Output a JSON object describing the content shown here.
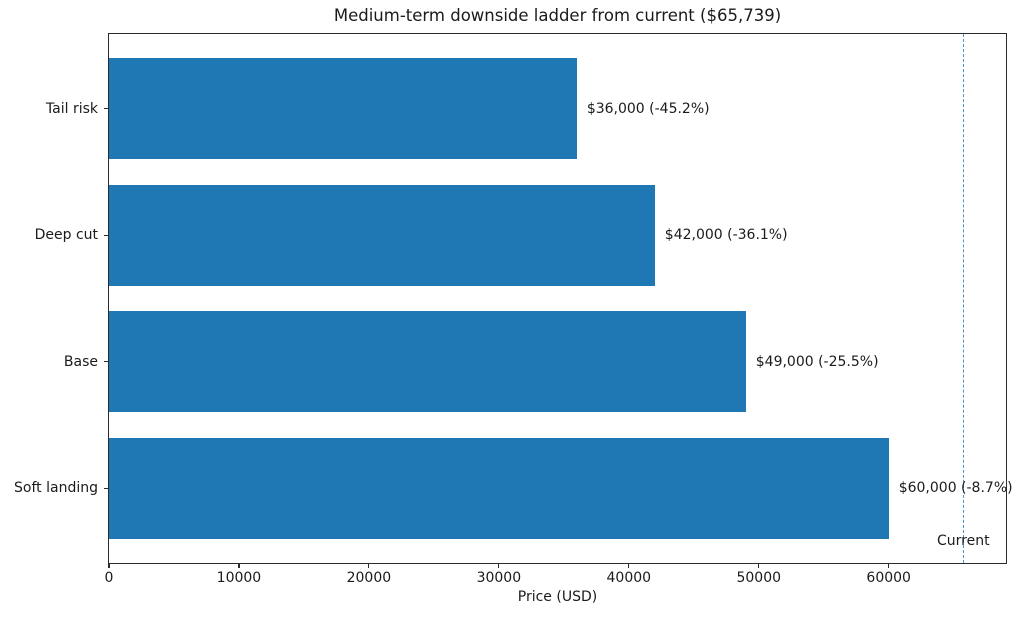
{
  "chart_data": {
    "type": "bar",
    "orientation": "horizontal",
    "title": "Medium-term downside ladder from current ($65,739)",
    "xlabel": "Price (USD)",
    "categories": [
      "Tail risk",
      "Deep cut",
      "Base",
      "Soft landing"
    ],
    "values": [
      36000,
      42000,
      49000,
      60000
    ],
    "bar_labels": [
      "$36,000 (-45.2%)",
      "$42,000 (-36.1%)",
      "$49,000 (-25.5%)",
      "$60,000 (-8.7%)"
    ],
    "reference_line": {
      "value": 65739,
      "label": "Current",
      "style": "dashed"
    },
    "xlim": [
      0,
      69026
    ],
    "xticks": [
      0,
      10000,
      20000,
      30000,
      40000,
      50000,
      60000
    ],
    "xtick_labels": [
      "0",
      "10000",
      "20000",
      "30000",
      "40000",
      "50000",
      "60000"
    ],
    "bar_relative_height": 0.8,
    "grid": false,
    "legend": null,
    "colors": {
      "bar": "#1f77b4",
      "reference_line": "#4695cc",
      "axis": "#2b2b2b",
      "text": "#1b1b1b"
    }
  }
}
